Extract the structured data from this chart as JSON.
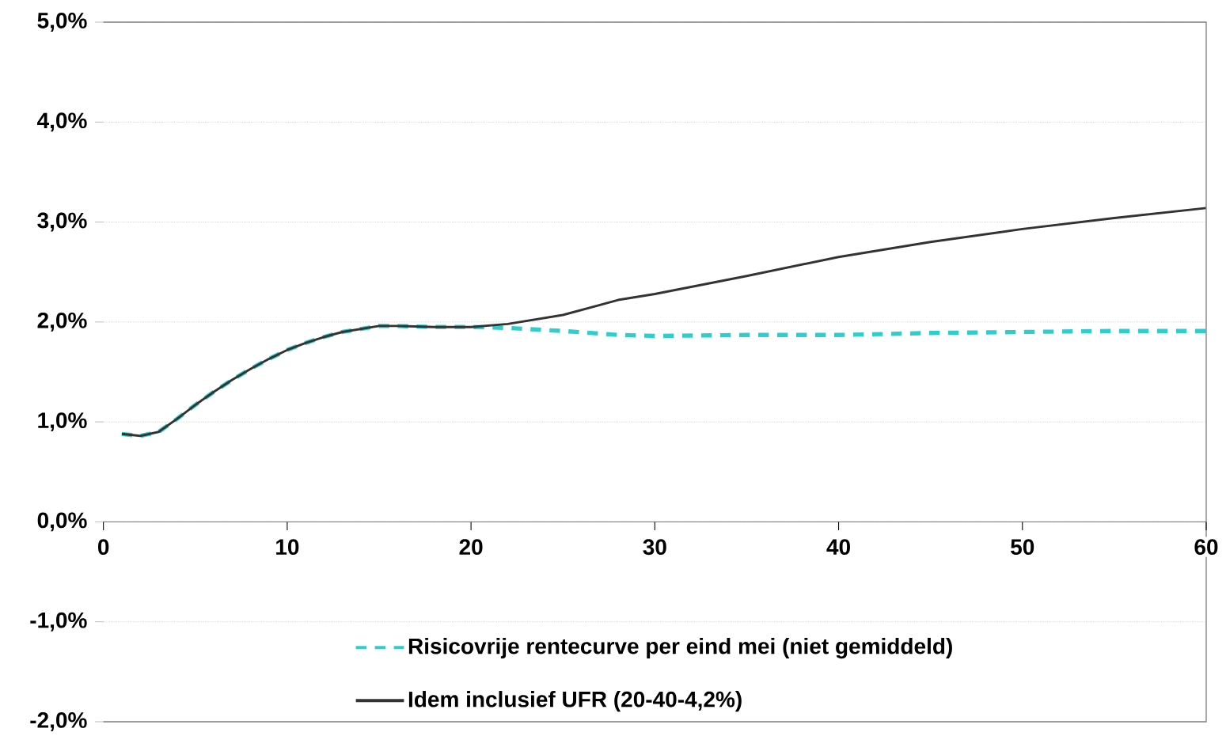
{
  "chart_data": {
    "type": "line",
    "x": [
      1,
      2,
      3,
      4,
      5,
      6,
      7,
      8,
      9,
      10,
      11,
      12,
      13,
      14,
      15,
      16,
      18,
      20,
      22,
      25,
      28,
      30,
      35,
      40,
      45,
      50,
      55,
      60
    ],
    "series": [
      {
        "name": "Risicovrije rentecurve per eind mei (niet gemiddeld)",
        "color": "#33cccc",
        "line_style": "dashed",
        "values": [
          0.88,
          0.86,
          0.9,
          1.03,
          1.17,
          1.3,
          1.42,
          1.53,
          1.63,
          1.72,
          1.79,
          1.85,
          1.9,
          1.93,
          1.96,
          1.96,
          1.95,
          1.95,
          1.94,
          1.91,
          1.87,
          1.86,
          1.87,
          1.87,
          1.89,
          1.9,
          1.91,
          1.91
        ]
      },
      {
        "name": "Idem inclusief UFR (20-40-4,2%)",
        "color": "#333333",
        "line_style": "solid",
        "values": [
          0.88,
          0.86,
          0.9,
          1.03,
          1.17,
          1.3,
          1.42,
          1.53,
          1.63,
          1.72,
          1.79,
          1.85,
          1.9,
          1.93,
          1.96,
          1.96,
          1.95,
          1.95,
          1.98,
          2.07,
          2.22,
          2.28,
          2.46,
          2.65,
          2.8,
          2.93,
          3.04,
          3.14
        ]
      }
    ],
    "xlim": [
      0,
      60
    ],
    "ylim": [
      -2,
      5
    ],
    "xticks": [
      0,
      10,
      20,
      30,
      40,
      50,
      60
    ],
    "yticks": [
      {
        "value": -2,
        "label": "-2,0%"
      },
      {
        "value": -1,
        "label": "-1,0%"
      },
      {
        "value": 0,
        "label": "0,0%"
      },
      {
        "value": 1,
        "label": "1,0%"
      },
      {
        "value": 2,
        "label": "2,0%"
      },
      {
        "value": 3,
        "label": "3,0%"
      },
      {
        "value": 4,
        "label": "4,0%"
      },
      {
        "value": 5,
        "label": "5,0%"
      }
    ],
    "grid": "y",
    "legend": "bottom",
    "marker": "none"
  }
}
